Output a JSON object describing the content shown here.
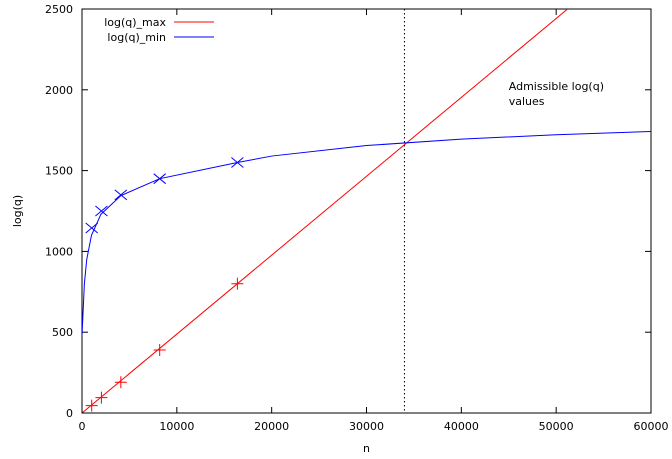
{
  "chart_data": {
    "type": "line",
    "title": "",
    "xlabel": "n",
    "ylabel": "log(q)",
    "xlim": [
      0,
      60000
    ],
    "ylim": [
      0,
      2500
    ],
    "xticks": [
      0,
      10000,
      20000,
      30000,
      40000,
      50000,
      60000
    ],
    "yticks": [
      0,
      500,
      1000,
      1500,
      2000,
      2500
    ],
    "grid": false,
    "legend_position": "top-left",
    "series": [
      {
        "name": "log(q)_max",
        "color": "#ff0000",
        "line": {
          "x": [
            0,
            51200
          ],
          "y": [
            0,
            2500
          ]
        },
        "markers": {
          "symbol": "plus",
          "x": [
            1024,
            2048,
            4096,
            8192,
            16384
          ],
          "y": [
            46,
            95,
            190,
            390,
            800
          ]
        }
      },
      {
        "name": "log(q)_min",
        "color": "#0000ff",
        "curve": {
          "x": [
            0,
            250,
            500,
            1000,
            2000,
            4096,
            8192,
            16384,
            20000,
            30000,
            40000,
            50000,
            60000
          ],
          "y": [
            480,
            800,
            950,
            1100,
            1230,
            1345,
            1450,
            1550,
            1590,
            1655,
            1695,
            1722,
            1742
          ]
        },
        "markers": {
          "symbol": "cross",
          "x": [
            1024,
            2048,
            4096,
            8192,
            16384
          ],
          "y": [
            1145,
            1250,
            1350,
            1450,
            1550
          ]
        }
      }
    ],
    "vertical_line": {
      "x": 34000,
      "style": "dotted"
    },
    "annotation": {
      "lines": [
        "Admissible log(q)",
        "values"
      ],
      "x": 45000,
      "y": 2000
    }
  }
}
